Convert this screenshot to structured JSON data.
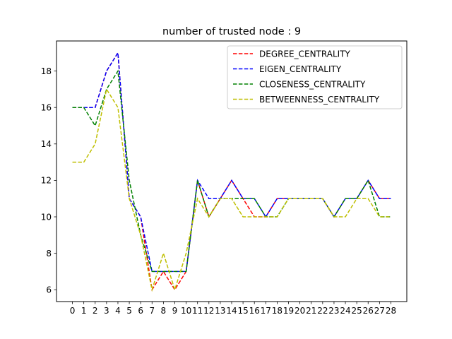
{
  "chart_data": {
    "type": "line",
    "title": "number of trusted node : 9",
    "xlabel": "",
    "ylabel": "",
    "x": [
      0,
      1,
      2,
      3,
      4,
      5,
      6,
      7,
      8,
      9,
      10,
      11,
      12,
      13,
      14,
      15,
      16,
      17,
      18,
      19,
      20,
      21,
      22,
      23,
      24,
      25,
      26,
      27,
      28
    ],
    "xlim": [
      -1.4,
      29.4
    ],
    "ylim": [
      5.35,
      19.65
    ],
    "yticks": [
      6,
      8,
      10,
      12,
      14,
      16,
      18
    ],
    "grid": false,
    "legend_position": "top-right",
    "line_style": "dashed",
    "series": [
      {
        "name": "DEGREE_CENTRALITY",
        "color": "#ff0000",
        "values": [
          16,
          16,
          16,
          18,
          19,
          11,
          10,
          6,
          7,
          6,
          7,
          12,
          10,
          11,
          12,
          11,
          10,
          10,
          11,
          11,
          11,
          11,
          11,
          10,
          11,
          11,
          12,
          11,
          11
        ]
      },
      {
        "name": "EIGEN_CENTRALITY",
        "color": "#0000ff",
        "values": [
          16,
          16,
          16,
          18,
          19,
          11,
          10,
          7,
          7,
          7,
          7,
          12,
          11,
          11,
          12,
          11,
          11,
          10,
          11,
          11,
          11,
          11,
          11,
          10,
          11,
          11,
          12,
          11,
          11
        ]
      },
      {
        "name": "CLOSENESS_CENTRALITY",
        "color": "#008000",
        "values": [
          16,
          16,
          15,
          17,
          18,
          12,
          9,
          7,
          7,
          7,
          7,
          12,
          10,
          11,
          11,
          11,
          11,
          10,
          10,
          11,
          11,
          11,
          11,
          10,
          11,
          11,
          12,
          10,
          10
        ]
      },
      {
        "name": "BETWEENNESS_CENTRALITY",
        "color": "#bfbf00",
        "values": [
          13,
          13,
          14,
          17,
          16,
          11,
          9,
          6,
          8,
          6,
          8,
          11,
          10,
          11,
          11,
          10,
          10,
          10,
          10,
          11,
          11,
          11,
          11,
          10,
          10,
          11,
          11,
          10,
          10
        ]
      }
    ]
  }
}
